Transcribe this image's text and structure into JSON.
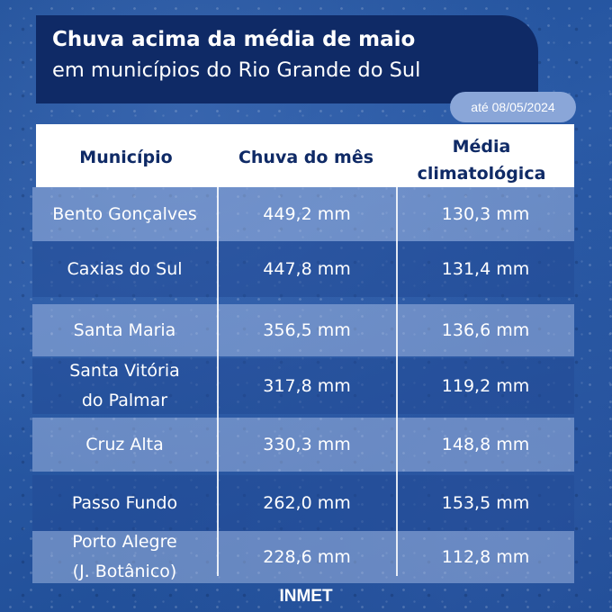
{
  "header": {
    "title": "Chuva acima da média de maio",
    "subtitle": "em municípios do Rio Grande do Sul",
    "date_badge": "até 08/05/2024"
  },
  "table": {
    "columns": [
      "Município",
      "Chuva do mês",
      "Média\nclimatológica"
    ],
    "rows": [
      {
        "municipio": "Bento Gonçalves",
        "chuva": "449,2 mm",
        "media": "130,3 mm"
      },
      {
        "municipio": "Caxias do Sul",
        "chuva": "447,8 mm",
        "media": "131,4 mm"
      },
      {
        "municipio": "Santa Maria",
        "chuva": "356,5 mm",
        "media": "136,6 mm"
      },
      {
        "municipio": "Santa Vitória\ndo Palmar",
        "chuva": "317,8 mm",
        "media": "119,2 mm"
      },
      {
        "municipio": "Cruz Alta",
        "chuva": "330,3 mm",
        "media": "148,8 mm"
      },
      {
        "municipio": "Passo Fundo",
        "chuva": "262,0 mm",
        "media": "153,5 mm"
      },
      {
        "municipio": "Porto Alegre\n(J. Botânico)",
        "chuva": "228,6 mm",
        "media": "112,8 mm"
      }
    ]
  },
  "footer": {
    "source": "INMET"
  },
  "colors": {
    "header_bg": "#0f2a66",
    "badge_bg": "#8aa6d8",
    "background": "#2a5aa6",
    "header_text": "#0f2a66"
  }
}
